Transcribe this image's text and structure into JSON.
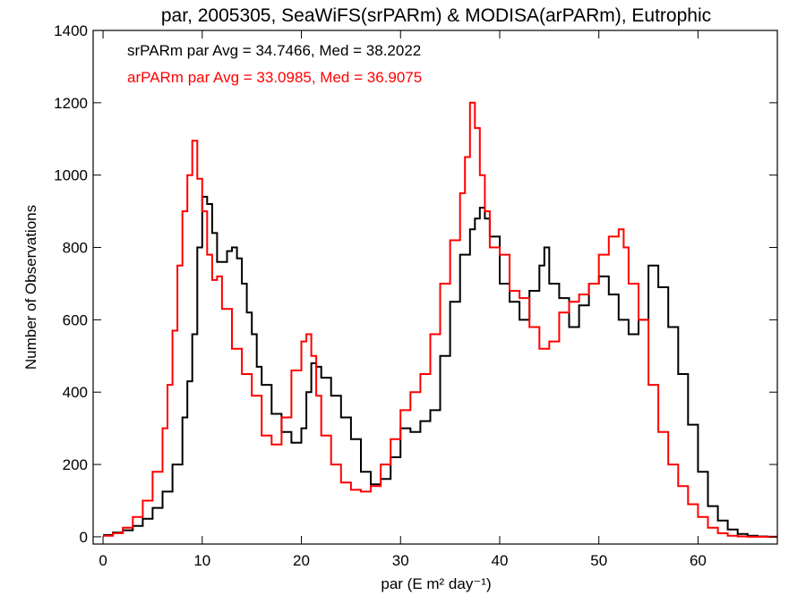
{
  "chart_data": {
    "type": "line",
    "title": "par, 2005305, SeaWiFS(srPARm) & MODISA(arPARm), Eutrophic",
    "xlabel": "par (E m² day⁻¹)",
    "ylabel": "Number of Observations",
    "xlim": [
      -1,
      68
    ],
    "ylim": [
      -20,
      1400
    ],
    "xticks": [
      0,
      10,
      20,
      30,
      40,
      50,
      60
    ],
    "yticks": [
      0,
      200,
      400,
      600,
      800,
      1000,
      1200,
      1400
    ],
    "grid": false,
    "legend_position": "top-left",
    "series": [
      {
        "name": "srPARm",
        "legend": "srPARm par Avg = 34.7466, Med = 38.2022",
        "color": "#000000",
        "x": [
          0,
          1,
          2,
          3,
          4,
          5,
          6,
          7,
          8,
          8.5,
          9,
          9.5,
          10,
          10.5,
          11,
          11.5,
          12,
          12.5,
          13,
          13.5,
          14,
          14.5,
          15,
          15.5,
          16,
          17,
          18,
          19,
          20,
          20.5,
          21,
          21.5,
          22,
          23,
          24,
          25,
          26,
          27,
          28,
          29,
          30,
          31,
          32,
          33,
          34,
          35,
          36,
          37,
          37.5,
          38,
          38.5,
          39,
          40,
          41,
          42,
          43,
          44,
          44.5,
          45,
          46,
          47,
          48,
          49,
          50,
          51,
          52,
          53,
          54,
          55,
          56,
          57,
          58,
          59,
          60,
          61,
          62,
          63,
          64,
          65,
          66,
          67
        ],
        "y": [
          5,
          12,
          18,
          30,
          50,
          80,
          125,
          200,
          330,
          430,
          560,
          800,
          940,
          920,
          840,
          760,
          760,
          790,
          800,
          770,
          700,
          620,
          560,
          470,
          420,
          340,
          290,
          260,
          300,
          400,
          480,
          470,
          440,
          390,
          330,
          270,
          180,
          145,
          160,
          220,
          300,
          290,
          320,
          350,
          500,
          650,
          780,
          850,
          880,
          910,
          880,
          830,
          700,
          650,
          600,
          680,
          750,
          800,
          700,
          660,
          580,
          640,
          700,
          720,
          670,
          600,
          560,
          600,
          750,
          690,
          580,
          450,
          310,
          180,
          85,
          45,
          20,
          8,
          3,
          1,
          0
        ]
      },
      {
        "name": "arPARm",
        "legend": "arPARm par Avg = 33.0985, Med = 36.9075",
        "color": "#ff0000",
        "x": [
          0,
          1,
          2,
          3,
          4,
          5,
          6,
          6.5,
          7,
          7.5,
          8,
          8.5,
          9,
          9.5,
          10,
          10.5,
          11,
          11.5,
          12,
          13,
          14,
          15,
          16,
          17,
          18,
          19,
          20,
          20.5,
          21,
          21.5,
          22,
          23,
          24,
          25,
          26,
          27,
          28,
          29,
          30,
          31,
          32,
          33,
          34,
          35,
          36,
          36.5,
          37,
          37.5,
          38,
          38.5,
          39,
          40,
          41,
          42,
          43,
          44,
          45,
          46,
          47,
          48,
          49,
          50,
          51,
          52,
          52.5,
          53,
          54,
          55,
          56,
          57,
          58,
          59,
          60,
          61,
          62,
          63,
          64,
          65,
          66,
          67
        ],
        "y": [
          3,
          10,
          25,
          55,
          100,
          180,
          300,
          420,
          570,
          750,
          900,
          1000,
          1095,
          990,
          900,
          780,
          710,
          720,
          630,
          520,
          450,
          390,
          280,
          255,
          330,
          460,
          540,
          560,
          500,
          390,
          280,
          200,
          150,
          130,
          125,
          140,
          200,
          270,
          350,
          400,
          450,
          560,
          700,
          820,
          950,
          1050,
          1200,
          1130,
          1000,
          900,
          800,
          780,
          680,
          660,
          580,
          520,
          540,
          620,
          650,
          670,
          700,
          780,
          830,
          850,
          800,
          700,
          600,
          420,
          290,
          200,
          140,
          90,
          55,
          25,
          10,
          3,
          1,
          0,
          0,
          0
        ]
      }
    ]
  }
}
